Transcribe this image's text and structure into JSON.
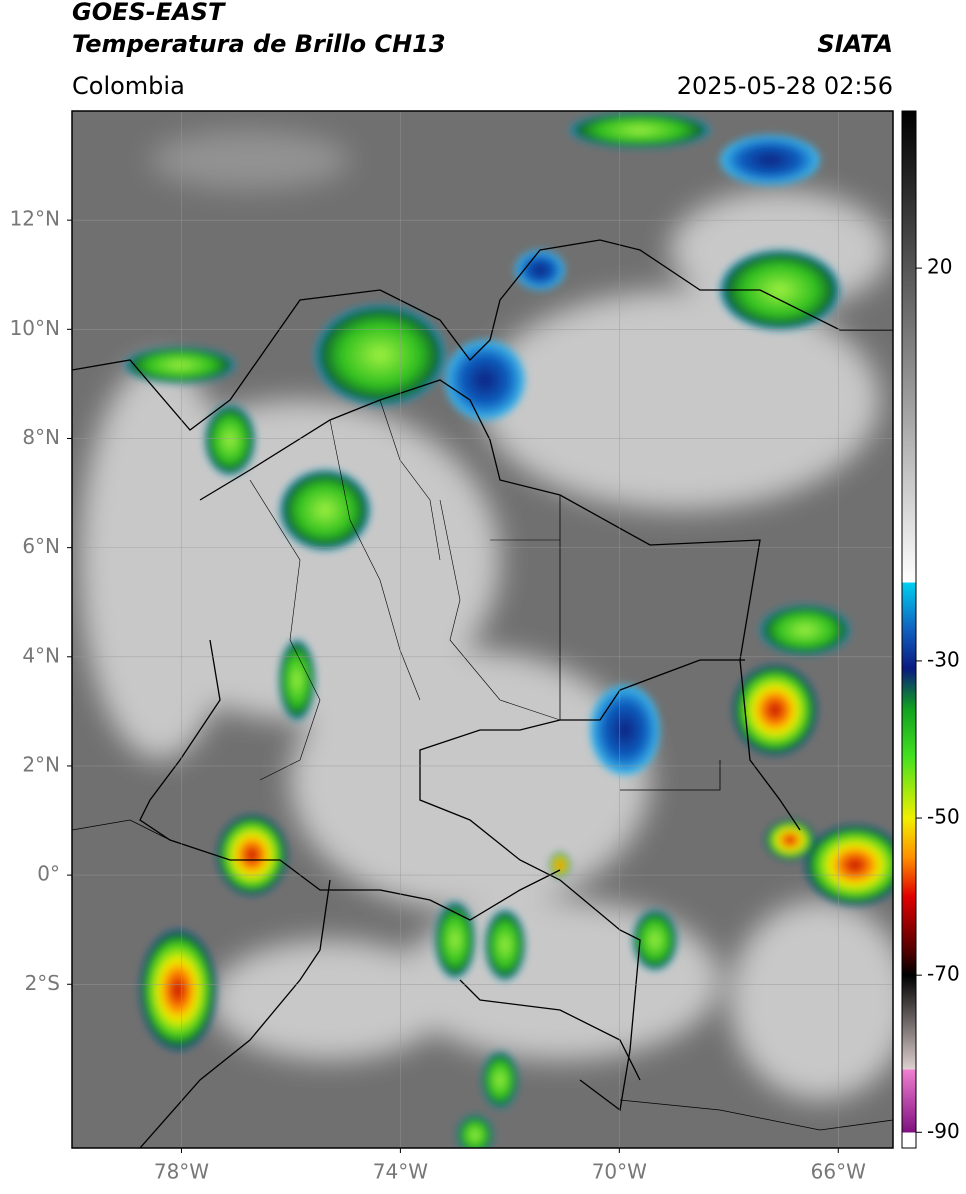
{
  "header": {
    "title": "GOES-EAST",
    "subtitle": "Temperatura de Brillo CH13",
    "source": "SIATA",
    "region": "Colombia",
    "datetime": "2025-05-28 02:56"
  },
  "map": {
    "xlim": [
      -80,
      -65
    ],
    "ylim": [
      -5,
      14
    ],
    "grid": true,
    "xticks": [
      {
        "value": -78,
        "label": "78°W"
      },
      {
        "value": -74,
        "label": "74°W"
      },
      {
        "value": -70,
        "label": "70°W"
      },
      {
        "value": -66,
        "label": "66°W"
      }
    ],
    "yticks": [
      {
        "value": 12,
        "label": "12°N"
      },
      {
        "value": 10,
        "label": "10°N"
      },
      {
        "value": 8,
        "label": "8°N"
      },
      {
        "value": 6,
        "label": "6°N"
      },
      {
        "value": 4,
        "label": "4°N"
      },
      {
        "value": 2,
        "label": "2°N"
      },
      {
        "value": 0,
        "label": "0°"
      },
      {
        "value": -2,
        "label": "2°S"
      }
    ]
  },
  "colorbar": {
    "lim": [
      -92,
      40
    ],
    "ticks": [
      20,
      -30,
      -50,
      -70,
      -90
    ],
    "stops": [
      {
        "value": 40,
        "color": "#000000"
      },
      {
        "value": -20,
        "color": "#ffffff"
      },
      {
        "value": -20,
        "color": "#00d0f0"
      },
      {
        "value": -26,
        "color": "#1060c0"
      },
      {
        "value": -31,
        "color": "#0a1a80"
      },
      {
        "value": -36,
        "color": "#10a020"
      },
      {
        "value": -42,
        "color": "#40e020"
      },
      {
        "value": -50,
        "color": "#f0f000"
      },
      {
        "value": -55,
        "color": "#ff9000"
      },
      {
        "value": -60,
        "color": "#e00000"
      },
      {
        "value": -67,
        "color": "#500000"
      },
      {
        "value": -70,
        "color": "#000000"
      },
      {
        "value": -82,
        "color": "#e0d0d0"
      },
      {
        "value": -82,
        "color": "#f080d0"
      },
      {
        "value": -90,
        "color": "#801080"
      },
      {
        "value": -90,
        "color": "#ffffff"
      },
      {
        "value": -92,
        "color": "#ffffff"
      }
    ]
  }
}
